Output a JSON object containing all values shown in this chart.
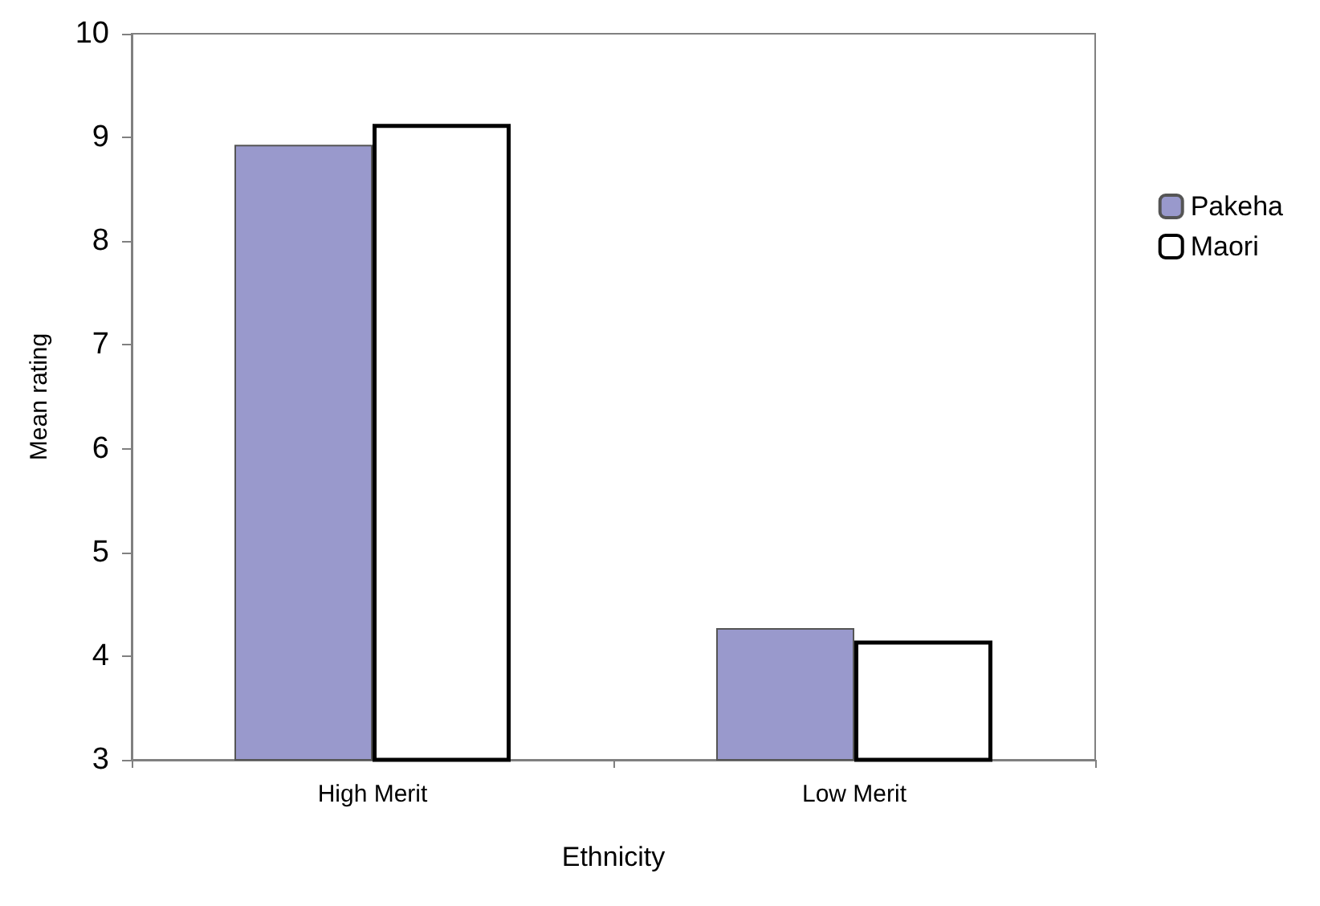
{
  "chart_data": {
    "type": "bar",
    "xlabel": "Ethnicity",
    "ylabel": "Mean rating",
    "categories": [
      "High Merit",
      "Low Merit"
    ],
    "series": [
      {
        "name": "Pakeha",
        "color": "#9999cc",
        "values": [
          8.93,
          4.27
        ]
      },
      {
        "name": "Maori",
        "color": "#ffffff",
        "values": [
          9.13,
          4.15
        ]
      }
    ],
    "ylim": [
      3,
      10
    ],
    "yticks": [
      3,
      4,
      5,
      6,
      7,
      8,
      9,
      10
    ],
    "grid": false,
    "legend": "right"
  }
}
